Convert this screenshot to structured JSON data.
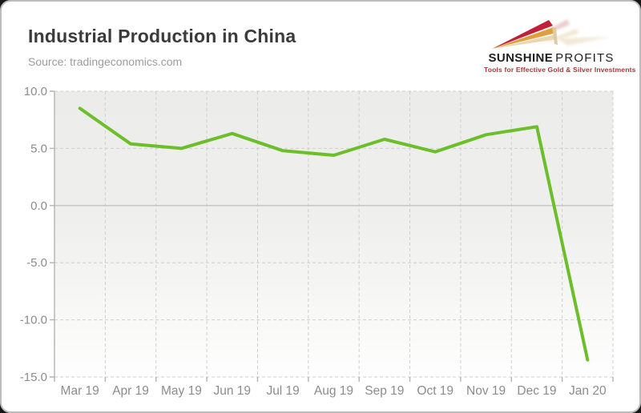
{
  "page": {
    "background_outside": "#171717",
    "card_background": "#ffffff",
    "card_border_color": "#bdbdbd"
  },
  "header": {
    "title": "Industrial Production in China",
    "source": "Source: tradingeconomics.com"
  },
  "logo": {
    "name_bold": "SUNSHINE",
    "name_light": "PROFITS",
    "tagline": "Tools for Effective Gold & Silver Investments",
    "colors": {
      "ray_red": "#c22038",
      "ray_orange": "#df9f3c",
      "ray_tan": "#e8d7b2",
      "text": "#1f1f1f",
      "tagline_red": "#a23b39"
    }
  },
  "chart_data": {
    "type": "line",
    "title": "Industrial Production in China",
    "source": "Source: tradingeconomics.com",
    "categories": [
      "Mar 19",
      "Apr 19",
      "May 19",
      "Jun 19",
      "Jul 19",
      "Aug 19",
      "Sep 19",
      "Oct 19",
      "Nov 19",
      "Dec 19",
      "Jan 20"
    ],
    "values": [
      8.5,
      5.4,
      5.0,
      6.3,
      4.8,
      4.4,
      5.8,
      4.7,
      6.2,
      6.9,
      -13.5
    ],
    "ylim": [
      -15,
      10
    ],
    "yticks": [
      {
        "v": 10,
        "label": "10.0"
      },
      {
        "v": 5,
        "label": "5.0"
      },
      {
        "v": 0,
        "label": "0.0"
      },
      {
        "v": -5,
        "label": "-5.0"
      },
      {
        "v": -10,
        "label": "-10.0"
      },
      {
        "v": -15,
        "label": "-15.0"
      }
    ],
    "xlabel": "",
    "ylabel": "",
    "legend": "none",
    "grid": {
      "horizontal": "dashed",
      "vertical": "dashed",
      "zero_line": "solid"
    },
    "line_color": "#6cbe2b"
  },
  "chart_style": {
    "plot_bg_top": "#ececea",
    "plot_bg_bottom": "#fefefe",
    "grid_color": "#cfcfce",
    "zero_line_color": "#c2c2c0",
    "axis_color": "#b3b3b1",
    "tick_label_color": "#8c8c8c",
    "line_width": 4
  }
}
